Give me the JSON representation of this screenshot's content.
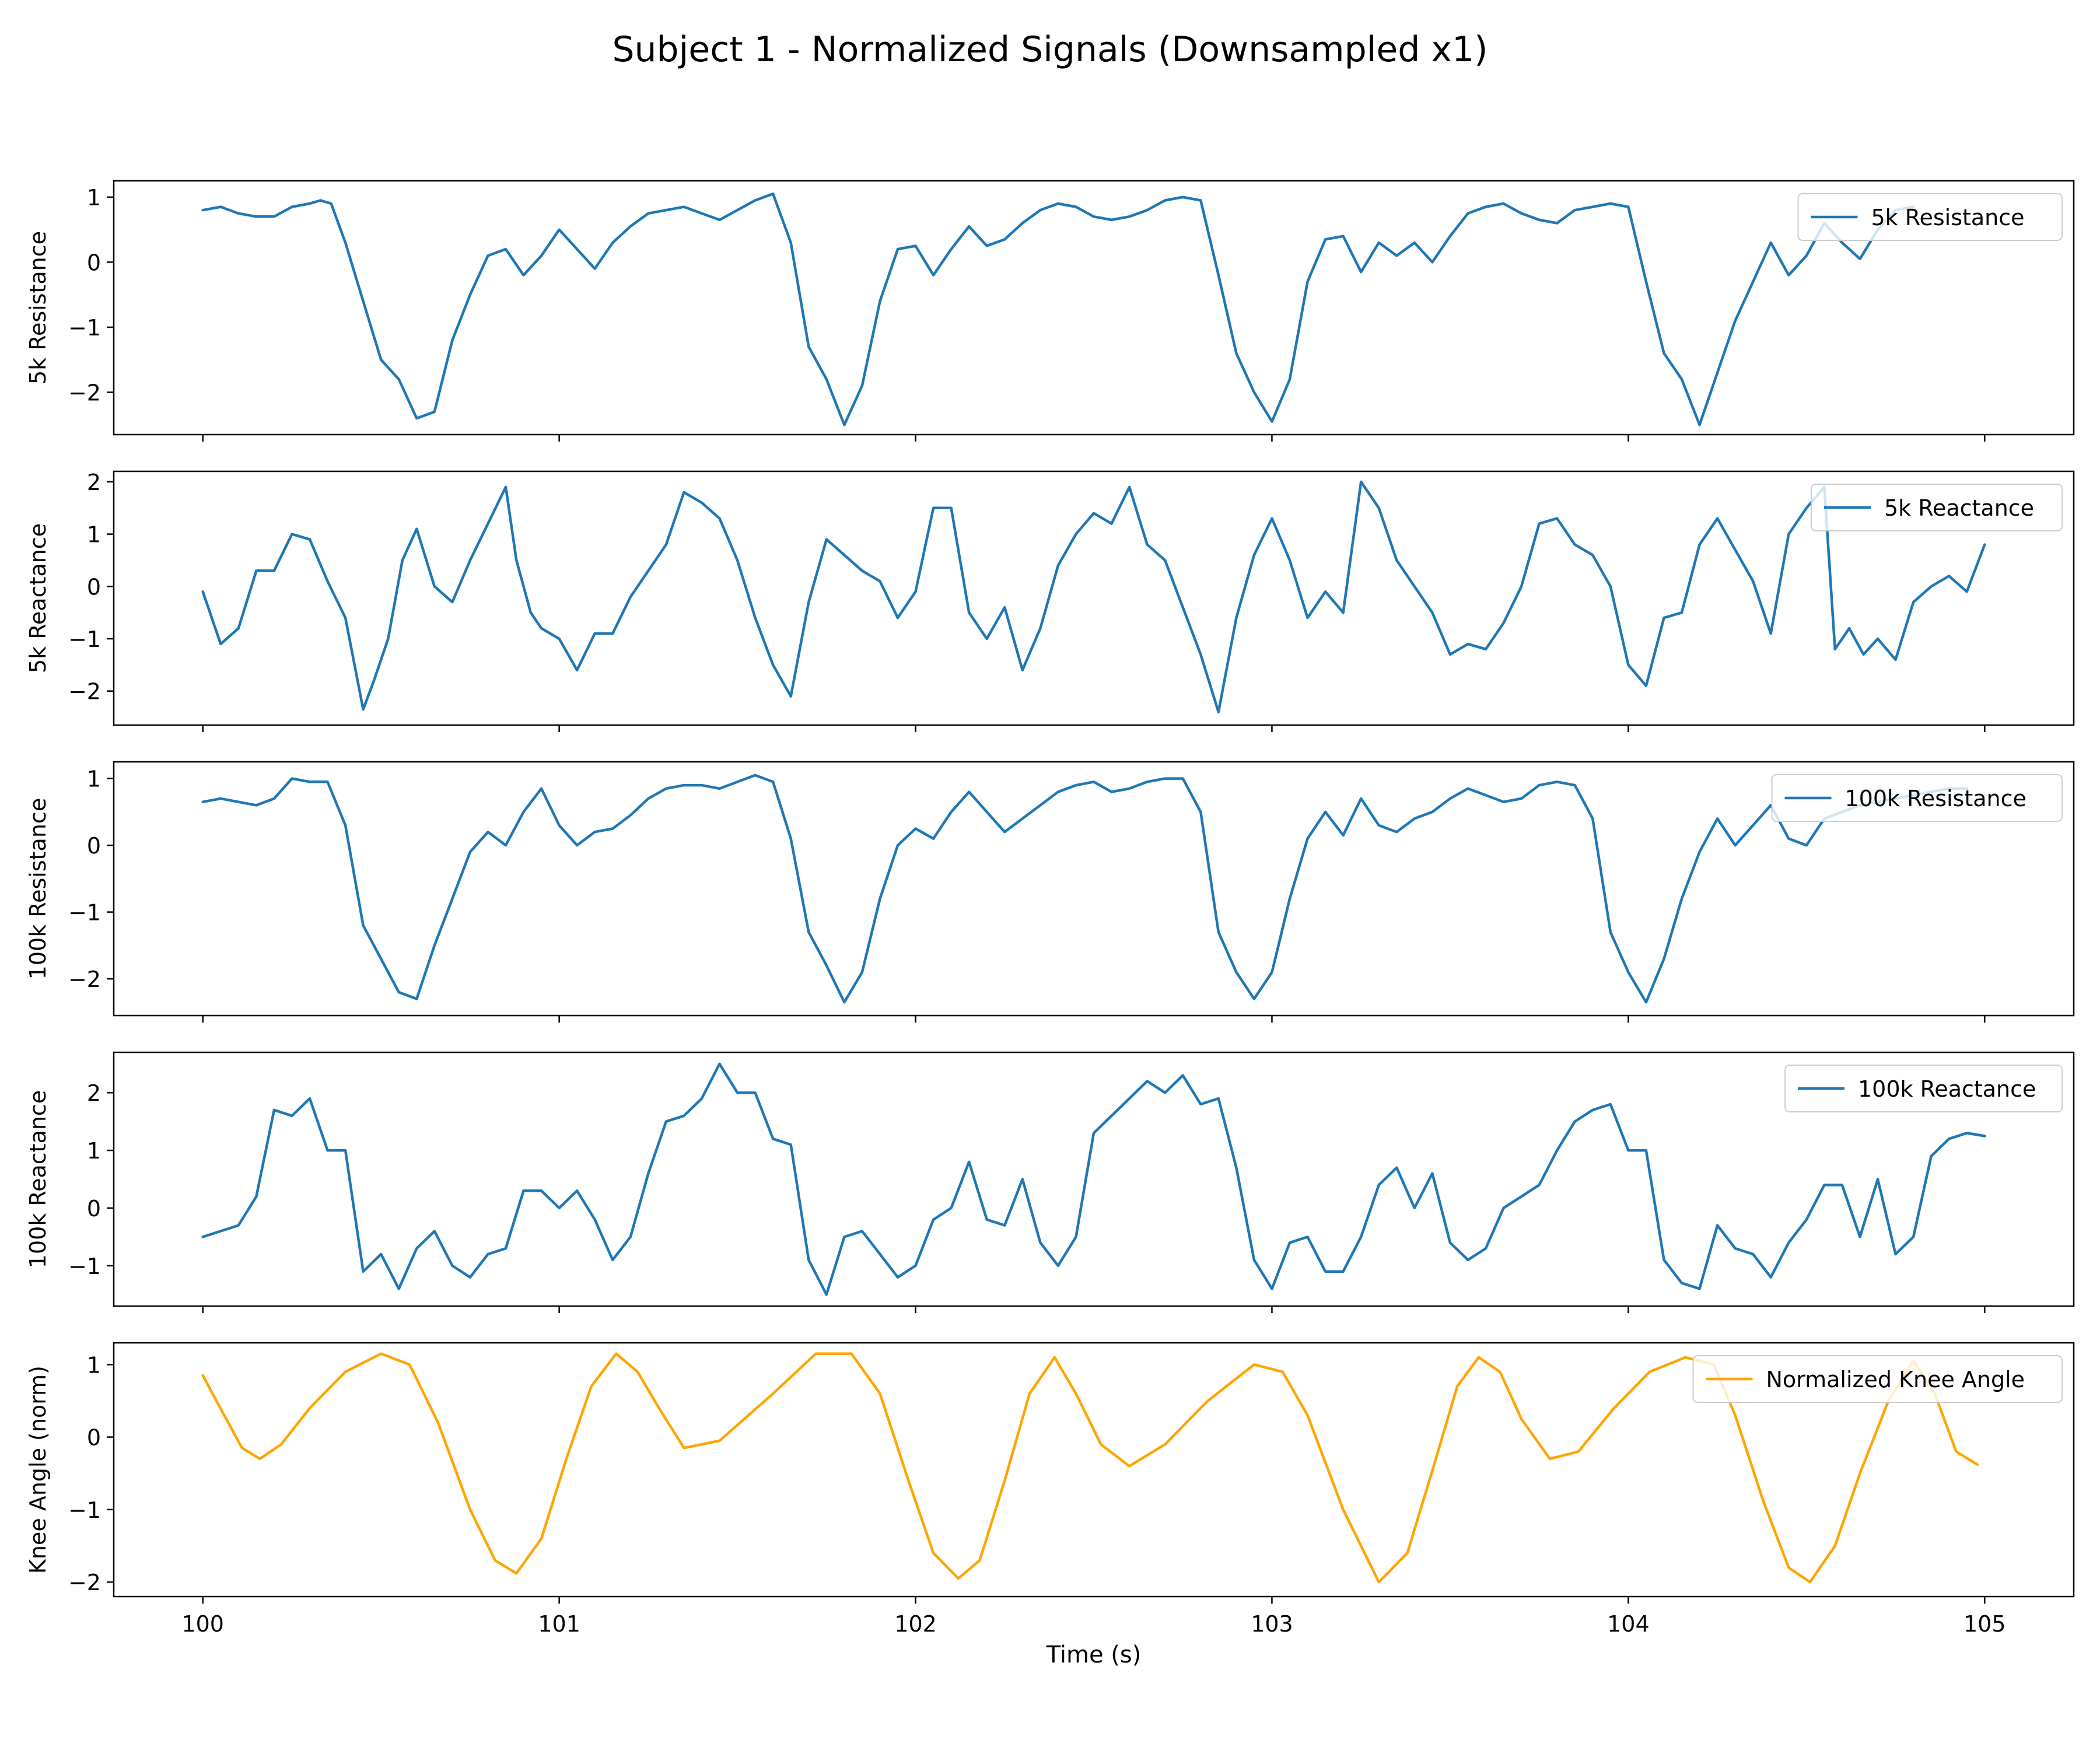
{
  "colors": {
    "blue": "#1f77b4",
    "orange": "#ffa500",
    "axis": "#000000",
    "legend_border": "#cccccc"
  },
  "chart_data": {
    "type": "line",
    "title": "Subject 1 - Normalized Signals (Downsampled x1)",
    "xlabel": "Time (s)",
    "xlim": [
      99.75,
      105.25
    ],
    "xticks": [
      100,
      101,
      102,
      103,
      104,
      105
    ],
    "xtick_labels": [
      "100",
      "101",
      "102",
      "103",
      "104",
      "105"
    ],
    "panels": [
      {
        "id": "res5k",
        "ylabel": "5k Resistance",
        "legend": "5k Resistance",
        "legend_loc": "upper right",
        "color": "blue",
        "ylim": [
          -2.65,
          1.25
        ],
        "yticks": [
          1,
          0,
          -1,
          -2
        ],
        "ytick_labels": [
          "1",
          "0",
          "−1",
          "−2"
        ],
        "x": [
          100.0,
          100.05,
          100.1,
          100.15,
          100.2,
          100.25,
          100.3,
          100.33,
          100.36,
          100.4,
          100.45,
          100.5,
          100.55,
          100.6,
          100.65,
          100.7,
          100.75,
          100.8,
          100.85,
          100.9,
          100.95,
          101.0,
          101.05,
          101.1,
          101.15,
          101.2,
          101.25,
          101.3,
          101.35,
          101.4,
          101.45,
          101.5,
          101.55,
          101.6,
          101.65,
          101.7,
          101.75,
          101.8,
          101.85,
          101.9,
          101.95,
          102.0,
          102.05,
          102.1,
          102.15,
          102.2,
          102.25,
          102.3,
          102.35,
          102.4,
          102.45,
          102.5,
          102.55,
          102.6,
          102.65,
          102.7,
          102.75,
          102.8,
          102.85,
          102.9,
          102.95,
          103.0,
          103.05,
          103.1,
          103.15,
          103.2,
          103.25,
          103.3,
          103.35,
          103.4,
          103.45,
          103.5,
          103.55,
          103.6,
          103.65,
          103.7,
          103.75,
          103.8,
          103.85,
          103.9,
          103.95,
          104.0,
          104.05,
          104.1,
          104.15,
          104.2,
          104.25,
          104.3,
          104.35,
          104.4,
          104.45,
          104.5,
          104.55,
          104.6,
          104.65,
          104.7,
          104.75,
          104.8
        ],
        "y": [
          0.8,
          0.85,
          0.75,
          0.7,
          0.7,
          0.85,
          0.9,
          0.95,
          0.9,
          0.3,
          -0.6,
          -1.5,
          -1.8,
          -2.4,
          -2.3,
          -1.2,
          -0.5,
          0.1,
          0.2,
          -0.2,
          0.1,
          0.5,
          0.2,
          -0.1,
          0.3,
          0.55,
          0.75,
          0.8,
          0.85,
          0.75,
          0.65,
          0.8,
          0.95,
          1.05,
          0.3,
          -1.3,
          -1.8,
          -2.5,
          -1.9,
          -0.6,
          0.2,
          0.25,
          -0.2,
          0.2,
          0.55,
          0.25,
          0.35,
          0.6,
          0.8,
          0.9,
          0.85,
          0.7,
          0.65,
          0.7,
          0.8,
          0.95,
          1.0,
          0.95,
          -0.2,
          -1.4,
          -2.0,
          -2.45,
          -1.8,
          -0.3,
          0.35,
          0.4,
          -0.15,
          0.3,
          0.1,
          0.3,
          0.0,
          0.4,
          0.75,
          0.85,
          0.9,
          0.75,
          0.65,
          0.6,
          0.8,
          0.85,
          0.9,
          0.85,
          -0.3,
          -1.4,
          -1.8,
          -2.5,
          -1.7,
          -0.9,
          -0.3,
          0.3,
          -0.2,
          0.1,
          0.6,
          0.3,
          0.05,
          0.5,
          0.8,
          0.85
        ]
      },
      {
        "id": "rea5k",
        "ylabel": "5k Reactance",
        "legend": "5k Reactance",
        "legend_loc": "upper right",
        "color": "blue",
        "ylim": [
          -2.65,
          2.2
        ],
        "yticks": [
          2,
          1,
          0,
          -1,
          -2
        ],
        "ytick_labels": [
          "2",
          "1",
          "0",
          "−1",
          "−2"
        ],
        "x": [
          100.0,
          100.05,
          100.1,
          100.15,
          100.2,
          100.25,
          100.3,
          100.35,
          100.4,
          100.45,
          100.48,
          100.52,
          100.56,
          100.6,
          100.65,
          100.7,
          100.75,
          100.8,
          100.85,
          100.88,
          100.92,
          100.95,
          101.0,
          101.05,
          101.1,
          101.15,
          101.2,
          101.25,
          101.3,
          101.35,
          101.4,
          101.45,
          101.5,
          101.55,
          101.6,
          101.65,
          101.7,
          101.75,
          101.8,
          101.85,
          101.9,
          101.95,
          102.0,
          102.05,
          102.1,
          102.15,
          102.2,
          102.25,
          102.3,
          102.35,
          102.4,
          102.45,
          102.5,
          102.55,
          102.6,
          102.65,
          102.7,
          102.75,
          102.8,
          102.85,
          102.9,
          102.95,
          103.0,
          103.05,
          103.1,
          103.15,
          103.2,
          103.25,
          103.3,
          103.35,
          103.4,
          103.45,
          103.5,
          103.55,
          103.6,
          103.65,
          103.7,
          103.75,
          103.8,
          103.85,
          103.9,
          103.95,
          104.0,
          104.05,
          104.1,
          104.15,
          104.2,
          104.25,
          104.3,
          104.35,
          104.4,
          104.45,
          104.5,
          104.55,
          104.58,
          104.62,
          104.66,
          104.7,
          104.75,
          104.8,
          104.85,
          104.9,
          104.95,
          105.0
        ],
        "y": [
          -0.1,
          -1.1,
          -0.8,
          0.3,
          0.3,
          1.0,
          0.9,
          0.1,
          -0.6,
          -2.35,
          -1.8,
          -1.0,
          0.5,
          1.1,
          0.0,
          -0.3,
          0.5,
          1.2,
          1.9,
          0.5,
          -0.5,
          -0.8,
          -1.0,
          -1.6,
          -0.9,
          -0.9,
          -0.2,
          0.3,
          0.8,
          1.8,
          1.6,
          1.3,
          0.5,
          -0.6,
          -1.5,
          -2.1,
          -0.3,
          0.9,
          0.6,
          0.3,
          0.1,
          -0.6,
          -0.1,
          1.5,
          1.5,
          -0.5,
          -1.0,
          -0.4,
          -1.6,
          -0.8,
          0.4,
          1.0,
          1.4,
          1.2,
          1.9,
          0.8,
          0.5,
          -0.4,
          -1.3,
          -2.4,
          -0.6,
          0.6,
          1.3,
          0.5,
          -0.6,
          -0.1,
          -0.5,
          2.0,
          1.5,
          0.5,
          0.0,
          -0.5,
          -1.3,
          -1.1,
          -1.2,
          -0.7,
          0.0,
          1.2,
          1.3,
          0.8,
          0.6,
          0.0,
          -1.5,
          -1.9,
          -0.6,
          -0.5,
          0.8,
          1.3,
          0.7,
          0.1,
          -0.9,
          1.0,
          1.5,
          1.9,
          -1.2,
          -0.8,
          -1.3,
          -1.0,
          -1.4,
          -0.3,
          0.0,
          0.2,
          -0.1,
          0.8
        ]
      },
      {
        "id": "res100k",
        "ylabel": "100k Resistance",
        "legend": "100k Resistance",
        "legend_loc": "upper right",
        "color": "blue",
        "ylim": [
          -2.55,
          1.25
        ],
        "yticks": [
          1,
          0,
          -1,
          -2
        ],
        "ytick_labels": [
          "1",
          "0",
          "−1",
          "−2"
        ],
        "x": [
          100.0,
          100.05,
          100.1,
          100.15,
          100.2,
          100.25,
          100.3,
          100.35,
          100.4,
          100.45,
          100.5,
          100.55,
          100.6,
          100.65,
          100.7,
          100.75,
          100.8,
          100.85,
          100.9,
          100.95,
          101.0,
          101.05,
          101.1,
          101.15,
          101.2,
          101.25,
          101.3,
          101.35,
          101.4,
          101.45,
          101.5,
          101.55,
          101.6,
          101.65,
          101.7,
          101.75,
          101.8,
          101.85,
          101.9,
          101.95,
          102.0,
          102.05,
          102.1,
          102.15,
          102.2,
          102.25,
          102.3,
          102.35,
          102.4,
          102.45,
          102.5,
          102.55,
          102.6,
          102.65,
          102.7,
          102.75,
          102.8,
          102.85,
          102.9,
          102.95,
          103.0,
          103.05,
          103.1,
          103.15,
          103.2,
          103.25,
          103.3,
          103.35,
          103.4,
          103.45,
          103.5,
          103.55,
          103.6,
          103.65,
          103.7,
          103.75,
          103.8,
          103.85,
          103.9,
          103.95,
          104.0,
          104.05,
          104.1,
          104.15,
          104.2,
          104.25,
          104.3,
          104.35,
          104.4,
          104.45,
          104.5,
          104.55,
          104.6,
          104.65,
          104.7,
          104.75,
          104.8,
          104.85,
          104.9,
          104.95
        ],
        "y": [
          0.65,
          0.7,
          0.65,
          0.6,
          0.7,
          1.0,
          0.95,
          0.95,
          0.3,
          -1.2,
          -1.7,
          -2.2,
          -2.3,
          -1.5,
          -0.8,
          -0.1,
          0.2,
          0.0,
          0.5,
          0.85,
          0.3,
          0.0,
          0.2,
          0.25,
          0.45,
          0.7,
          0.85,
          0.9,
          0.9,
          0.85,
          0.95,
          1.05,
          0.95,
          0.1,
          -1.3,
          -1.8,
          -2.35,
          -1.9,
          -0.8,
          0.0,
          0.25,
          0.1,
          0.5,
          0.8,
          0.5,
          0.2,
          0.4,
          0.6,
          0.8,
          0.9,
          0.95,
          0.8,
          0.85,
          0.95,
          1.0,
          1.0,
          0.5,
          -1.3,
          -1.9,
          -2.3,
          -1.9,
          -0.8,
          0.1,
          0.5,
          0.15,
          0.7,
          0.3,
          0.2,
          0.4,
          0.5,
          0.7,
          0.85,
          0.75,
          0.65,
          0.7,
          0.9,
          0.95,
          0.9,
          0.4,
          -1.3,
          -1.9,
          -2.35,
          -1.7,
          -0.8,
          -0.1,
          0.4,
          0.0,
          0.3,
          0.6,
          0.1,
          0.0,
          0.4,
          0.5,
          0.6,
          0.65,
          0.7,
          0.75,
          0.8,
          0.85,
          0.85
        ]
      },
      {
        "id": "rea100k",
        "ylabel": "100k Reactance",
        "legend": "100k Reactance",
        "legend_loc": "upper right",
        "color": "blue",
        "ylim": [
          -1.7,
          2.7
        ],
        "yticks": [
          2,
          1,
          0,
          -1
        ],
        "ytick_labels": [
          "2",
          "1",
          "0",
          "−1"
        ],
        "x": [
          100.0,
          100.05,
          100.1,
          100.15,
          100.2,
          100.25,
          100.3,
          100.35,
          100.4,
          100.45,
          100.5,
          100.55,
          100.6,
          100.65,
          100.7,
          100.75,
          100.8,
          100.85,
          100.9,
          100.95,
          101.0,
          101.05,
          101.1,
          101.15,
          101.2,
          101.25,
          101.3,
          101.35,
          101.4,
          101.45,
          101.5,
          101.55,
          101.6,
          101.65,
          101.7,
          101.75,
          101.8,
          101.85,
          101.9,
          101.95,
          102.0,
          102.05,
          102.1,
          102.15,
          102.2,
          102.25,
          102.3,
          102.35,
          102.4,
          102.45,
          102.5,
          102.55,
          102.6,
          102.65,
          102.7,
          102.75,
          102.8,
          102.85,
          102.9,
          102.95,
          103.0,
          103.05,
          103.1,
          103.15,
          103.2,
          103.25,
          103.3,
          103.35,
          103.4,
          103.45,
          103.5,
          103.55,
          103.6,
          103.65,
          103.7,
          103.75,
          103.8,
          103.85,
          103.9,
          103.95,
          104.0,
          104.05,
          104.1,
          104.15,
          104.2,
          104.25,
          104.3,
          104.35,
          104.4,
          104.45,
          104.5,
          104.55,
          104.6,
          104.65,
          104.7,
          104.75,
          104.8,
          104.85,
          104.9,
          104.95,
          105.0
        ],
        "y": [
          -0.5,
          -0.4,
          -0.3,
          0.2,
          1.7,
          1.6,
          1.9,
          1.0,
          1.0,
          -1.1,
          -0.8,
          -1.4,
          -0.7,
          -0.4,
          -1.0,
          -1.2,
          -0.8,
          -0.7,
          0.3,
          0.3,
          0.0,
          0.3,
          -0.2,
          -0.9,
          -0.5,
          0.6,
          1.5,
          1.6,
          1.9,
          2.5,
          2.0,
          2.0,
          1.2,
          1.1,
          -0.9,
          -1.5,
          -0.5,
          -0.4,
          -0.8,
          -1.2,
          -1.0,
          -0.2,
          0.0,
          0.8,
          -0.2,
          -0.3,
          0.5,
          -0.6,
          -1.0,
          -0.5,
          1.3,
          1.6,
          1.9,
          2.2,
          2.0,
          2.3,
          1.8,
          1.9,
          0.7,
          -0.9,
          -1.4,
          -0.6,
          -0.5,
          -1.1,
          -1.1,
          -0.5,
          0.4,
          0.7,
          0.0,
          0.6,
          -0.6,
          -0.9,
          -0.7,
          0.0,
          0.2,
          0.4,
          1.0,
          1.5,
          1.7,
          1.8,
          1.0,
          1.0,
          -0.9,
          -1.3,
          -1.4,
          -0.3,
          -0.7,
          -0.8,
          -1.2,
          -0.6,
          -0.2,
          0.4,
          0.4,
          -0.5,
          0.5,
          -0.8,
          -0.5,
          0.9,
          1.2,
          1.3,
          1.25
        ]
      },
      {
        "id": "knee",
        "ylabel": "Knee Angle (norm)",
        "legend": "Normalized Knee Angle",
        "legend_loc": "upper right",
        "color": "orange",
        "ylim": [
          -2.2,
          1.3
        ],
        "yticks": [
          1,
          0,
          -1,
          -2
        ],
        "ytick_labels": [
          "1",
          "0",
          "−1",
          "−2"
        ],
        "x": [
          100.0,
          100.06,
          100.11,
          100.16,
          100.22,
          100.3,
          100.4,
          100.5,
          100.58,
          100.66,
          100.75,
          100.82,
          100.88,
          100.95,
          101.02,
          101.09,
          101.16,
          101.22,
          101.28,
          101.35,
          101.45,
          101.6,
          101.72,
          101.82,
          101.9,
          101.98,
          102.05,
          102.12,
          102.18,
          102.25,
          102.32,
          102.39,
          102.45,
          102.52,
          102.6,
          102.7,
          102.82,
          102.95,
          103.03,
          103.1,
          103.2,
          103.3,
          103.38,
          103.46,
          103.52,
          103.58,
          103.64,
          103.7,
          103.78,
          103.86,
          103.96,
          104.06,
          104.16,
          104.24,
          104.3,
          104.38,
          104.45,
          104.51,
          104.58,
          104.65,
          104.73,
          104.8,
          104.86,
          104.92,
          104.98
        ],
        "y": [
          0.85,
          0.3,
          -0.15,
          -0.3,
          -0.1,
          0.4,
          0.9,
          1.15,
          1.0,
          0.2,
          -1.0,
          -1.7,
          -1.88,
          -1.4,
          -0.3,
          0.7,
          1.15,
          0.9,
          0.4,
          -0.15,
          -0.05,
          0.6,
          1.15,
          1.15,
          0.6,
          -0.6,
          -1.6,
          -1.95,
          -1.7,
          -0.6,
          0.6,
          1.1,
          0.6,
          -0.1,
          -0.4,
          -0.1,
          0.5,
          1.0,
          0.9,
          0.3,
          -1.0,
          -2.0,
          -1.6,
          -0.3,
          0.7,
          1.1,
          0.9,
          0.25,
          -0.3,
          -0.2,
          0.4,
          0.9,
          1.1,
          1.0,
          0.3,
          -0.9,
          -1.8,
          -2.0,
          -1.5,
          -0.5,
          0.5,
          1.05,
          0.6,
          -0.2,
          -0.38
        ]
      }
    ]
  }
}
